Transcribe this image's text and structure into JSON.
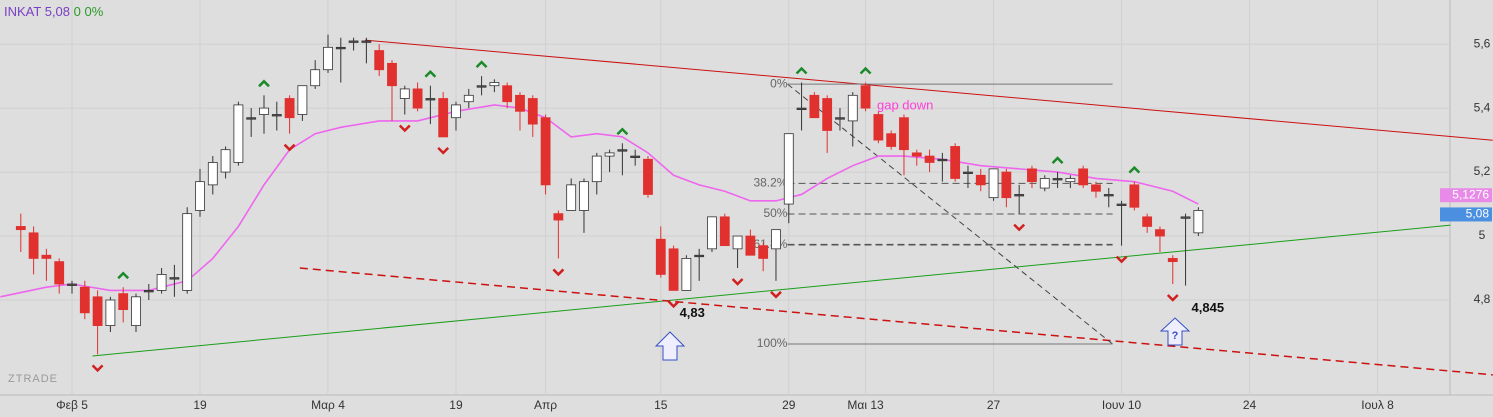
{
  "chart_data": {
    "type": "candlestick",
    "symbol": "INKAT",
    "change": "0 0%",
    "last": {
      "value": 5.08,
      "label": "5,08"
    },
    "watermark": "ZTRADE",
    "note": "gap down",
    "question": "?",
    "x": [
      -4,
      -3,
      -2,
      -1,
      0,
      1,
      2,
      3,
      4,
      5,
      6,
      7,
      8,
      9,
      10,
      11,
      12,
      13,
      14,
      15,
      16,
      17,
      18,
      19,
      20,
      21,
      22,
      23,
      24,
      25,
      26,
      27,
      28,
      29,
      30,
      31,
      32,
      33,
      34,
      35,
      36,
      37,
      38,
      39,
      40,
      41,
      42,
      43,
      44,
      45,
      46,
      47,
      48,
      49,
      50,
      51,
      52,
      53,
      54,
      55,
      56,
      57,
      58,
      59,
      60,
      61,
      62,
      63,
      64,
      65,
      66,
      67,
      68,
      69,
      70,
      71,
      72,
      73,
      74,
      75,
      76,
      77,
      78,
      79,
      80,
      81,
      82,
      83,
      84,
      85,
      86,
      87,
      88
    ],
    "open": [
      5.03,
      5.01,
      4.94,
      4.92,
      4.85,
      4.84,
      4.81,
      4.72,
      4.82,
      4.72,
      4.83,
      4.83,
      4.87,
      4.83,
      5.08,
      5.16,
      5.2,
      5.23,
      5.37,
      5.38,
      5.38,
      5.43,
      5.38,
      5.47,
      5.52,
      5.59,
      5.61,
      5.61,
      5.58,
      5.54,
      5.43,
      5.46,
      5.43,
      5.43,
      5.37,
      5.42,
      5.47,
      5.47,
      5.47,
      5.44,
      5.43,
      5.37,
      5.07,
      5.08,
      5.08,
      5.17,
      5.25,
      5.27,
      5.25,
      5.24,
      4.99,
      4.96,
      4.83,
      4.94,
      4.96,
      5.06,
      4.96,
      5.0,
      4.97,
      4.96,
      5.1,
      5.4,
      5.44,
      5.43,
      5.37,
      5.36,
      5.47,
      5.38,
      5.32,
      5.37,
      5.26,
      5.25,
      5.24,
      5.28,
      5.2,
      5.19,
      5.12,
      5.2,
      5.13,
      5.21,
      5.15,
      5.18,
      5.17,
      5.21,
      5.16,
      5.13,
      5.1,
      5.16,
      5.06,
      5.02,
      4.93,
      5.06,
      5.01
    ],
    "high": [
      5.07,
      5.03,
      4.96,
      4.93,
      4.86,
      4.86,
      4.83,
      4.81,
      4.84,
      4.82,
      4.85,
      4.9,
      4.91,
      5.09,
      5.21,
      5.25,
      5.28,
      5.42,
      5.4,
      5.44,
      5.42,
      5.44,
      5.47,
      5.55,
      5.63,
      5.62,
      5.62,
      5.62,
      5.6,
      5.55,
      5.47,
      5.48,
      5.47,
      5.45,
      5.42,
      5.46,
      5.5,
      5.49,
      5.48,
      5.45,
      5.44,
      5.38,
      5.08,
      5.18,
      5.18,
      5.26,
      5.27,
      5.29,
      5.27,
      5.25,
      5.03,
      4.97,
      4.94,
      4.96,
      5.06,
      5.07,
      5.0,
      5.02,
      4.98,
      5.02,
      5.32,
      5.48,
      5.45,
      5.44,
      5.4,
      5.45,
      5.48,
      5.39,
      5.33,
      5.38,
      5.27,
      5.27,
      5.26,
      5.29,
      5.22,
      5.21,
      5.21,
      5.21,
      5.16,
      5.22,
      5.19,
      5.2,
      5.19,
      5.22,
      5.17,
      5.15,
      5.11,
      5.17,
      5.07,
      5.03,
      4.94,
      5.07,
      5.09
    ],
    "low": [
      4.95,
      4.88,
      4.86,
      4.82,
      4.82,
      4.74,
      4.63,
      4.7,
      4.73,
      4.7,
      4.8,
      4.82,
      4.81,
      4.82,
      5.06,
      5.13,
      5.18,
      5.22,
      5.31,
      5.32,
      5.33,
      5.32,
      5.36,
      5.46,
      5.51,
      5.48,
      5.58,
      5.54,
      5.5,
      5.36,
      5.38,
      5.39,
      5.35,
      5.31,
      5.33,
      5.4,
      5.44,
      5.45,
      5.4,
      5.33,
      5.31,
      5.13,
      4.93,
      5.08,
      5.01,
      5.13,
      5.2,
      5.19,
      5.22,
      5.12,
      4.87,
      4.83,
      4.83,
      4.86,
      4.95,
      4.97,
      4.9,
      4.94,
      4.89,
      4.86,
      5.04,
      5.33,
      5.37,
      5.26,
      5.33,
      5.28,
      5.39,
      5.29,
      5.27,
      5.19,
      5.22,
      5.2,
      5.17,
      5.17,
      5.15,
      5.14,
      5.11,
      5.09,
      5.07,
      5.15,
      5.14,
      5.15,
      5.15,
      5.15,
      5.12,
      5.09,
      4.97,
      5.08,
      5.01,
      4.95,
      4.85,
      4.845,
      5.0
    ],
    "close": [
      5.02,
      4.93,
      4.93,
      4.85,
      4.85,
      4.76,
      4.72,
      4.8,
      4.77,
      4.81,
      4.83,
      4.88,
      4.87,
      5.07,
      5.17,
      5.23,
      5.27,
      5.41,
      5.37,
      5.4,
      5.38,
      5.37,
      5.47,
      5.52,
      5.59,
      5.59,
      5.61,
      5.61,
      5.52,
      5.47,
      5.46,
      5.4,
      5.43,
      5.31,
      5.41,
      5.44,
      5.47,
      5.48,
      5.42,
      5.39,
      5.35,
      5.16,
      5.05,
      5.16,
      5.17,
      5.25,
      5.26,
      5.27,
      5.25,
      5.13,
      4.88,
      4.83,
      4.93,
      4.94,
      5.06,
      4.97,
      5.0,
      4.94,
      4.93,
      5.02,
      5.32,
      5.4,
      5.37,
      5.33,
      5.37,
      5.44,
      5.4,
      5.3,
      5.28,
      5.27,
      5.25,
      5.23,
      5.24,
      5.18,
      5.2,
      5.16,
      5.21,
      5.12,
      5.13,
      5.17,
      5.18,
      5.18,
      5.18,
      5.16,
      5.14,
      5.13,
      5.1,
      5.09,
      5.03,
      5.0,
      4.92,
      5.06,
      5.08
    ],
    "colors": {
      "up": "#ffffff",
      "down": "#e0312f",
      "flat": "#555555",
      "wick": "#333333"
    },
    "ma": {
      "name": "MA",
      "color": "#ee66ee",
      "x": [
        -5.6,
        -2,
        0,
        3,
        6,
        9,
        11,
        13,
        15,
        17,
        19,
        21,
        24,
        27,
        30,
        33,
        35,
        37,
        39,
        41,
        43,
        45,
        47,
        49,
        51,
        53,
        55,
        57,
        59,
        61,
        63,
        65,
        68,
        71,
        74,
        77,
        80,
        83,
        86,
        88
      ],
      "values": [
        4.81,
        4.84,
        4.85,
        4.83,
        4.83,
        4.86,
        4.93,
        5.03,
        5.16,
        5.27,
        5.32,
        5.34,
        5.36,
        5.36,
        5.39,
        5.41,
        5.4,
        5.37,
        5.31,
        5.32,
        5.31,
        5.26,
        5.19,
        5.16,
        5.14,
        5.11,
        5.11,
        5.13,
        5.18,
        5.22,
        5.25,
        5.25,
        5.24,
        5.22,
        5.21,
        5.2,
        5.18,
        5.17,
        5.14,
        5.1
      ]
    },
    "trendlines": [
      {
        "x": [
          22.9,
          111
        ],
        "y": [
          5.6125,
          5.2995
        ],
        "color": "#cc1111",
        "dash": false
      },
      {
        "x": [
          1.6,
          107.7
        ],
        "y": [
          4.625,
          5.034
        ],
        "color": "#1a9e1a",
        "dash": false
      },
      {
        "x": [
          17.8,
          111
        ],
        "y": [
          4.9,
          4.566
        ],
        "color": "#cc1111",
        "dash": true
      }
    ],
    "fib": {
      "x": [
        55.9,
        81.3
      ],
      "high": 5.475,
      "low": 4.6625,
      "levels": [
        {
          "value": 0,
          "label": "0%"
        },
        {
          "value": 38.2,
          "label": "38.2%"
        },
        {
          "value": 50,
          "label": "50%"
        },
        {
          "value": 61.8,
          "label": "61.8%"
        },
        {
          "value": 100,
          "label": "100%"
        }
      ]
    },
    "signals": {
      "up": [
        4,
        15,
        28,
        32,
        43,
        57,
        62,
        77,
        83
      ],
      "down": [
        2,
        17,
        26,
        29,
        38,
        47,
        52,
        55,
        74,
        82,
        86
      ]
    },
    "lows": [
      {
        "x": 47,
        "value": 4.83,
        "label": "4,83"
      },
      {
        "x": 87,
        "value": 4.845,
        "label": "4,845"
      }
    ],
    "price_tags": [
      {
        "value": 5.1276,
        "label": "5,1276",
        "color": "#e88ae8"
      },
      {
        "value": 5.08,
        "label": "5,08",
        "color": "#4a8fe0"
      }
    ],
    "xlim": [
      -5.625,
      107.66
    ],
    "xticks": [
      {
        "value": 0,
        "label": "Φεβ 5"
      },
      {
        "value": 10,
        "label": "19"
      },
      {
        "value": 20,
        "label": "Μαρ 4"
      },
      {
        "value": 30,
        "label": "19"
      },
      {
        "value": 37,
        "label": "Απρ"
      },
      {
        "value": 46,
        "label": "15"
      },
      {
        "value": 56,
        "label": "29"
      },
      {
        "value": 62,
        "label": "Μαι 13"
      },
      {
        "value": 72,
        "label": "27"
      },
      {
        "value": 82,
        "label": "Ιουν 10"
      },
      {
        "value": 92,
        "label": "24"
      },
      {
        "value": 102,
        "label": "Ιουλ 8"
      }
    ],
    "ylim": [
      4.503,
      5.738
    ],
    "yticks": [
      {
        "value": 4.8,
        "label": "4,8"
      },
      5,
      {
        "value": 5.2,
        "label": "5,2"
      },
      {
        "value": 5.4,
        "label": "5,4"
      },
      {
        "value": 5.6,
        "label": "5,6"
      }
    ],
    "grid": true
  }
}
